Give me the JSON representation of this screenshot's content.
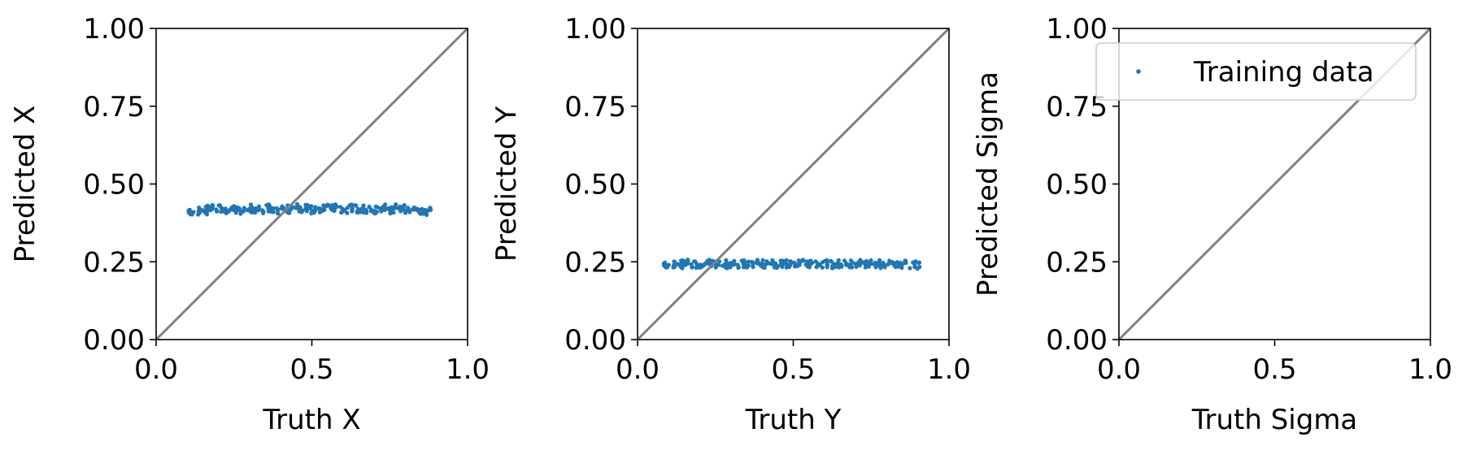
{
  "chart_data": [
    {
      "type": "scatter",
      "xlabel": "Truth X",
      "ylabel": "Predicted X",
      "xlim": [
        0.0,
        1.0
      ],
      "ylim": [
        0.0,
        1.0
      ],
      "xticks": [
        "0.0",
        "0.5",
        "1.0"
      ],
      "yticks": [
        "0.00",
        "0.25",
        "0.50",
        "0.75",
        "1.00"
      ],
      "reference_line": {
        "x": [
          0.0,
          1.0
        ],
        "y": [
          0.0,
          1.0
        ],
        "color": "#808080"
      },
      "series": [
        {
          "color": "#1f77b4",
          "x": [
            0.12,
            0.15,
            0.18,
            0.21,
            0.24,
            0.27,
            0.3,
            0.33,
            0.36,
            0.39,
            0.42,
            0.45,
            0.48,
            0.51,
            0.54,
            0.57,
            0.6,
            0.63,
            0.66,
            0.69,
            0.72,
            0.75,
            0.78,
            0.81,
            0.84,
            0.87
          ],
          "y": [
            0.41,
            0.415,
            0.42,
            0.423,
            0.418,
            0.416,
            0.421,
            0.419,
            0.422,
            0.417,
            0.42,
            0.423,
            0.421,
            0.418,
            0.422,
            0.424,
            0.419,
            0.421,
            0.42,
            0.418,
            0.421,
            0.417,
            0.422,
            0.42,
            0.415,
            0.412
          ]
        }
      ]
    },
    {
      "type": "scatter",
      "xlabel": "Truth Y",
      "ylabel": "Predicted Y",
      "xlim": [
        0.0,
        1.0
      ],
      "ylim": [
        0.0,
        1.0
      ],
      "xticks": [
        "0.0",
        "0.5",
        "1.0"
      ],
      "yticks": [
        "0.00",
        "0.25",
        "0.50",
        "0.75",
        "1.00"
      ],
      "reference_line": {
        "x": [
          0.0,
          1.0
        ],
        "y": [
          0.0,
          1.0
        ],
        "color": "#808080"
      },
      "series": [
        {
          "color": "#1f77b4",
          "x": [
            0.1,
            0.13,
            0.16,
            0.19,
            0.22,
            0.25,
            0.28,
            0.31,
            0.34,
            0.37,
            0.4,
            0.43,
            0.46,
            0.49,
            0.52,
            0.55,
            0.58,
            0.61,
            0.64,
            0.67,
            0.7,
            0.73,
            0.76,
            0.79,
            0.82,
            0.85,
            0.89
          ],
          "y": [
            0.24,
            0.242,
            0.244,
            0.243,
            0.245,
            0.244,
            0.242,
            0.244,
            0.243,
            0.245,
            0.244,
            0.243,
            0.242,
            0.244,
            0.245,
            0.243,
            0.244,
            0.242,
            0.244,
            0.245,
            0.243,
            0.244,
            0.242,
            0.243,
            0.244,
            0.242,
            0.241
          ]
        }
      ]
    },
    {
      "type": "scatter",
      "xlabel": "Truth Sigma",
      "ylabel": "Predicted Sigma",
      "xlim": [
        0.0,
        1.0
      ],
      "ylim": [
        0.0,
        1.0
      ],
      "xticks": [
        "0.0",
        "0.5",
        "1.0"
      ],
      "yticks": [
        "0.00",
        "0.25",
        "0.50",
        "0.75",
        "1.00"
      ],
      "reference_line": {
        "x": [
          0.0,
          1.0
        ],
        "y": [
          0.0,
          1.0
        ],
        "color": "#808080"
      },
      "legend": {
        "location": "upper right",
        "entries": [
          "Training data"
        ]
      },
      "series": [
        {
          "name": "Training data",
          "color": "#1f77b4",
          "x": [],
          "y": []
        }
      ]
    }
  ]
}
